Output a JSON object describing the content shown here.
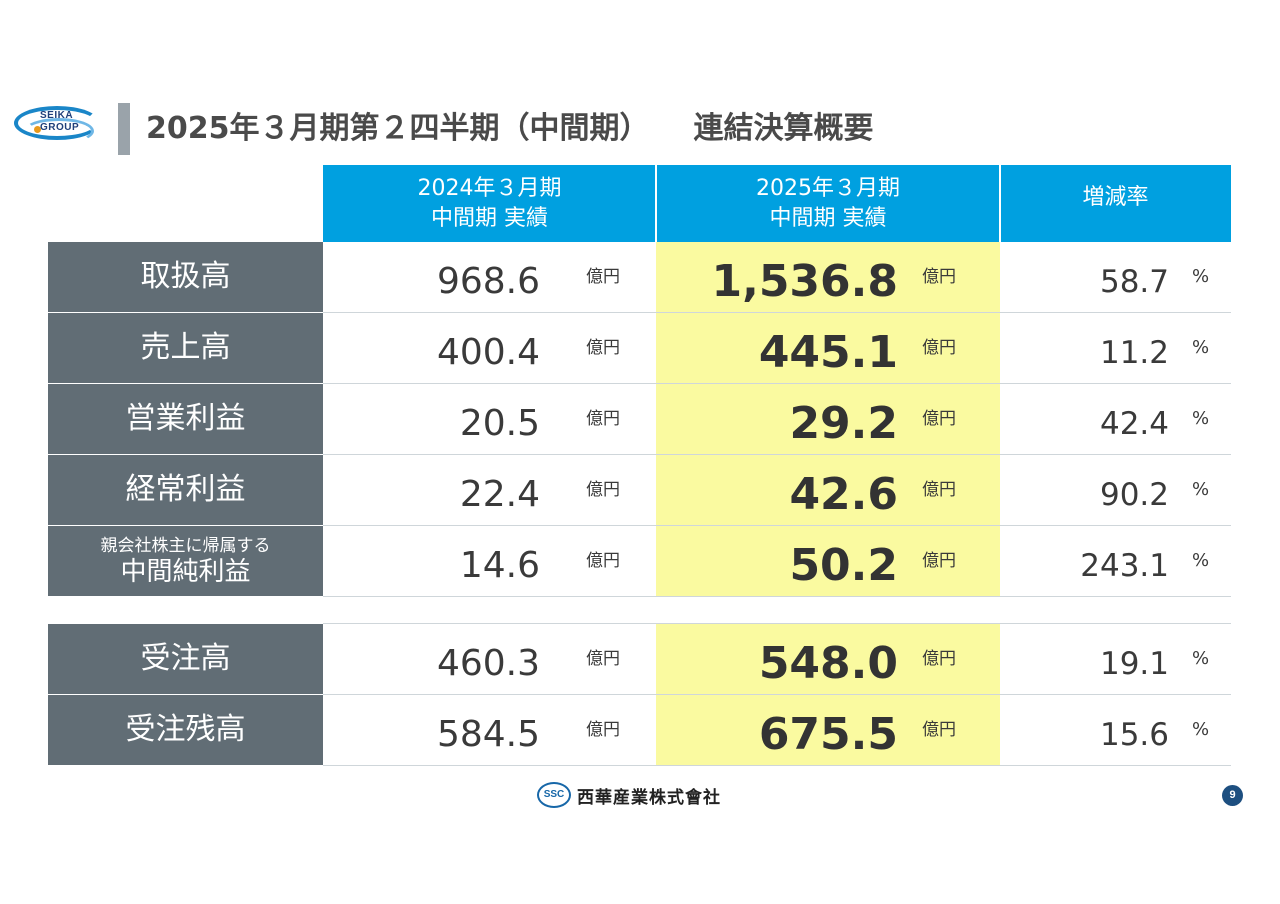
{
  "logo": {
    "text": "SEIKA\nGROUP"
  },
  "title": {
    "main": "2025年３月期第２四半期（中間期）",
    "sub": "連結決算概要"
  },
  "headers": {
    "prev": [
      "2024年３月期",
      "中間期 実績"
    ],
    "cur": [
      "2025年３月期",
      "中間期 実績"
    ],
    "rate": "増減率"
  },
  "unit_yen": "億円",
  "unit_pct": "%",
  "rows": [
    {
      "label": "取扱高",
      "prev": "968.6",
      "cur": "1,536.8",
      "rate": "58.7"
    },
    {
      "label": "売上高",
      "prev": "400.4",
      "cur": "445.1",
      "rate": "11.2"
    },
    {
      "label": "営業利益",
      "prev": "20.5",
      "cur": "29.2",
      "rate": "42.4"
    },
    {
      "label": "経常利益",
      "prev": "22.4",
      "cur": "42.6",
      "rate": "90.2"
    },
    {
      "label_small": "親会社株主に帰属する",
      "label": "中間純利益",
      "prev": "14.6",
      "cur": "50.2",
      "rate": "243.1"
    },
    {
      "label": "受注高",
      "prev": "460.3",
      "cur": "548.0",
      "rate": "19.1"
    },
    {
      "label": "受注残高",
      "prev": "584.5",
      "cur": "675.5",
      "rate": "15.6"
    }
  ],
  "footer": {
    "mark": "SSC",
    "company": "西華産業株式會社",
    "page": "9"
  },
  "colors": {
    "header": "#00a0e0",
    "label_bg": "#616d75",
    "highlight": "#fafaa0",
    "title_bar": "#9aa3aa"
  }
}
